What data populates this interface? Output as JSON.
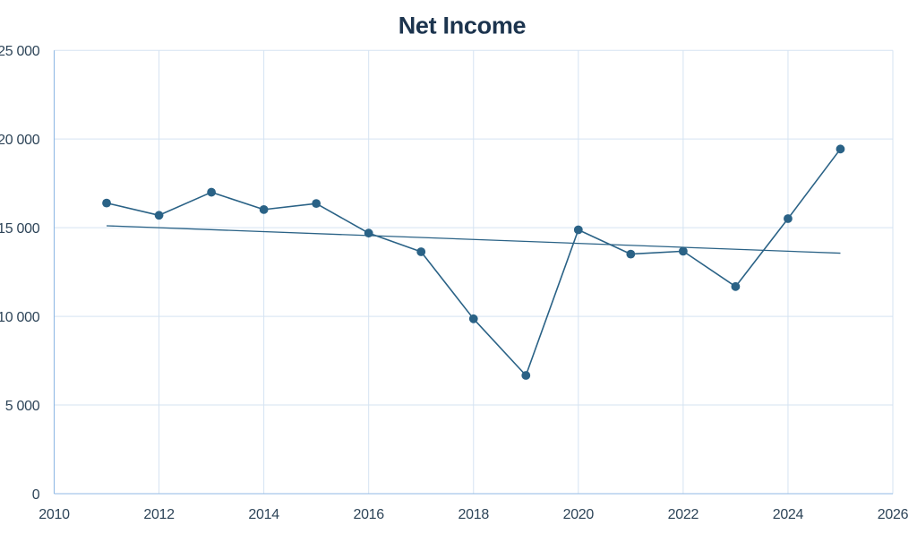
{
  "page": {
    "background": "#ffffff"
  },
  "chart_data": {
    "type": "line",
    "title": "Net Income",
    "x": [
      2011,
      2012,
      2013,
      2014,
      2015,
      2016,
      2017,
      2018,
      2019,
      2020,
      2021,
      2022,
      2023,
      2024,
      2025
    ],
    "series": [
      {
        "name": "Net Income",
        "values": [
          16389,
          15699,
          16999,
          16022,
          16363,
          14694,
          13643,
          9862,
          6670,
          14881,
          13510,
          13673,
          11680,
          15511,
          19436
        ]
      }
    ],
    "trendline": {
      "x1": 2011,
      "y1": 15109,
      "x2": 2025,
      "y2": 13562
    },
    "xlim": [
      2010,
      2026
    ],
    "ylim": [
      0,
      25000
    ],
    "x_ticks": [
      2010,
      2012,
      2014,
      2016,
      2018,
      2020,
      2022,
      2024,
      2026
    ],
    "x_tick_labels": [
      "2010",
      "2012",
      "2014",
      "2016",
      "2018",
      "2020",
      "2022",
      "2024",
      "2026"
    ],
    "y_ticks": [
      0,
      5000,
      10000,
      15000,
      20000,
      25000
    ],
    "y_tick_labels": [
      "0",
      "5 000",
      "10 000",
      "15 000",
      "20 000",
      "25 000"
    ],
    "grid": true,
    "legend": false,
    "colors": {
      "title": "#1c344e",
      "tick_label": "#2d4458",
      "series": "#2a6286",
      "marker": "#2a6286",
      "trendline": "#2a6286",
      "gridline": "#d5e3f2",
      "axis_line": "#90b9e4",
      "background": "#ffffff"
    }
  }
}
